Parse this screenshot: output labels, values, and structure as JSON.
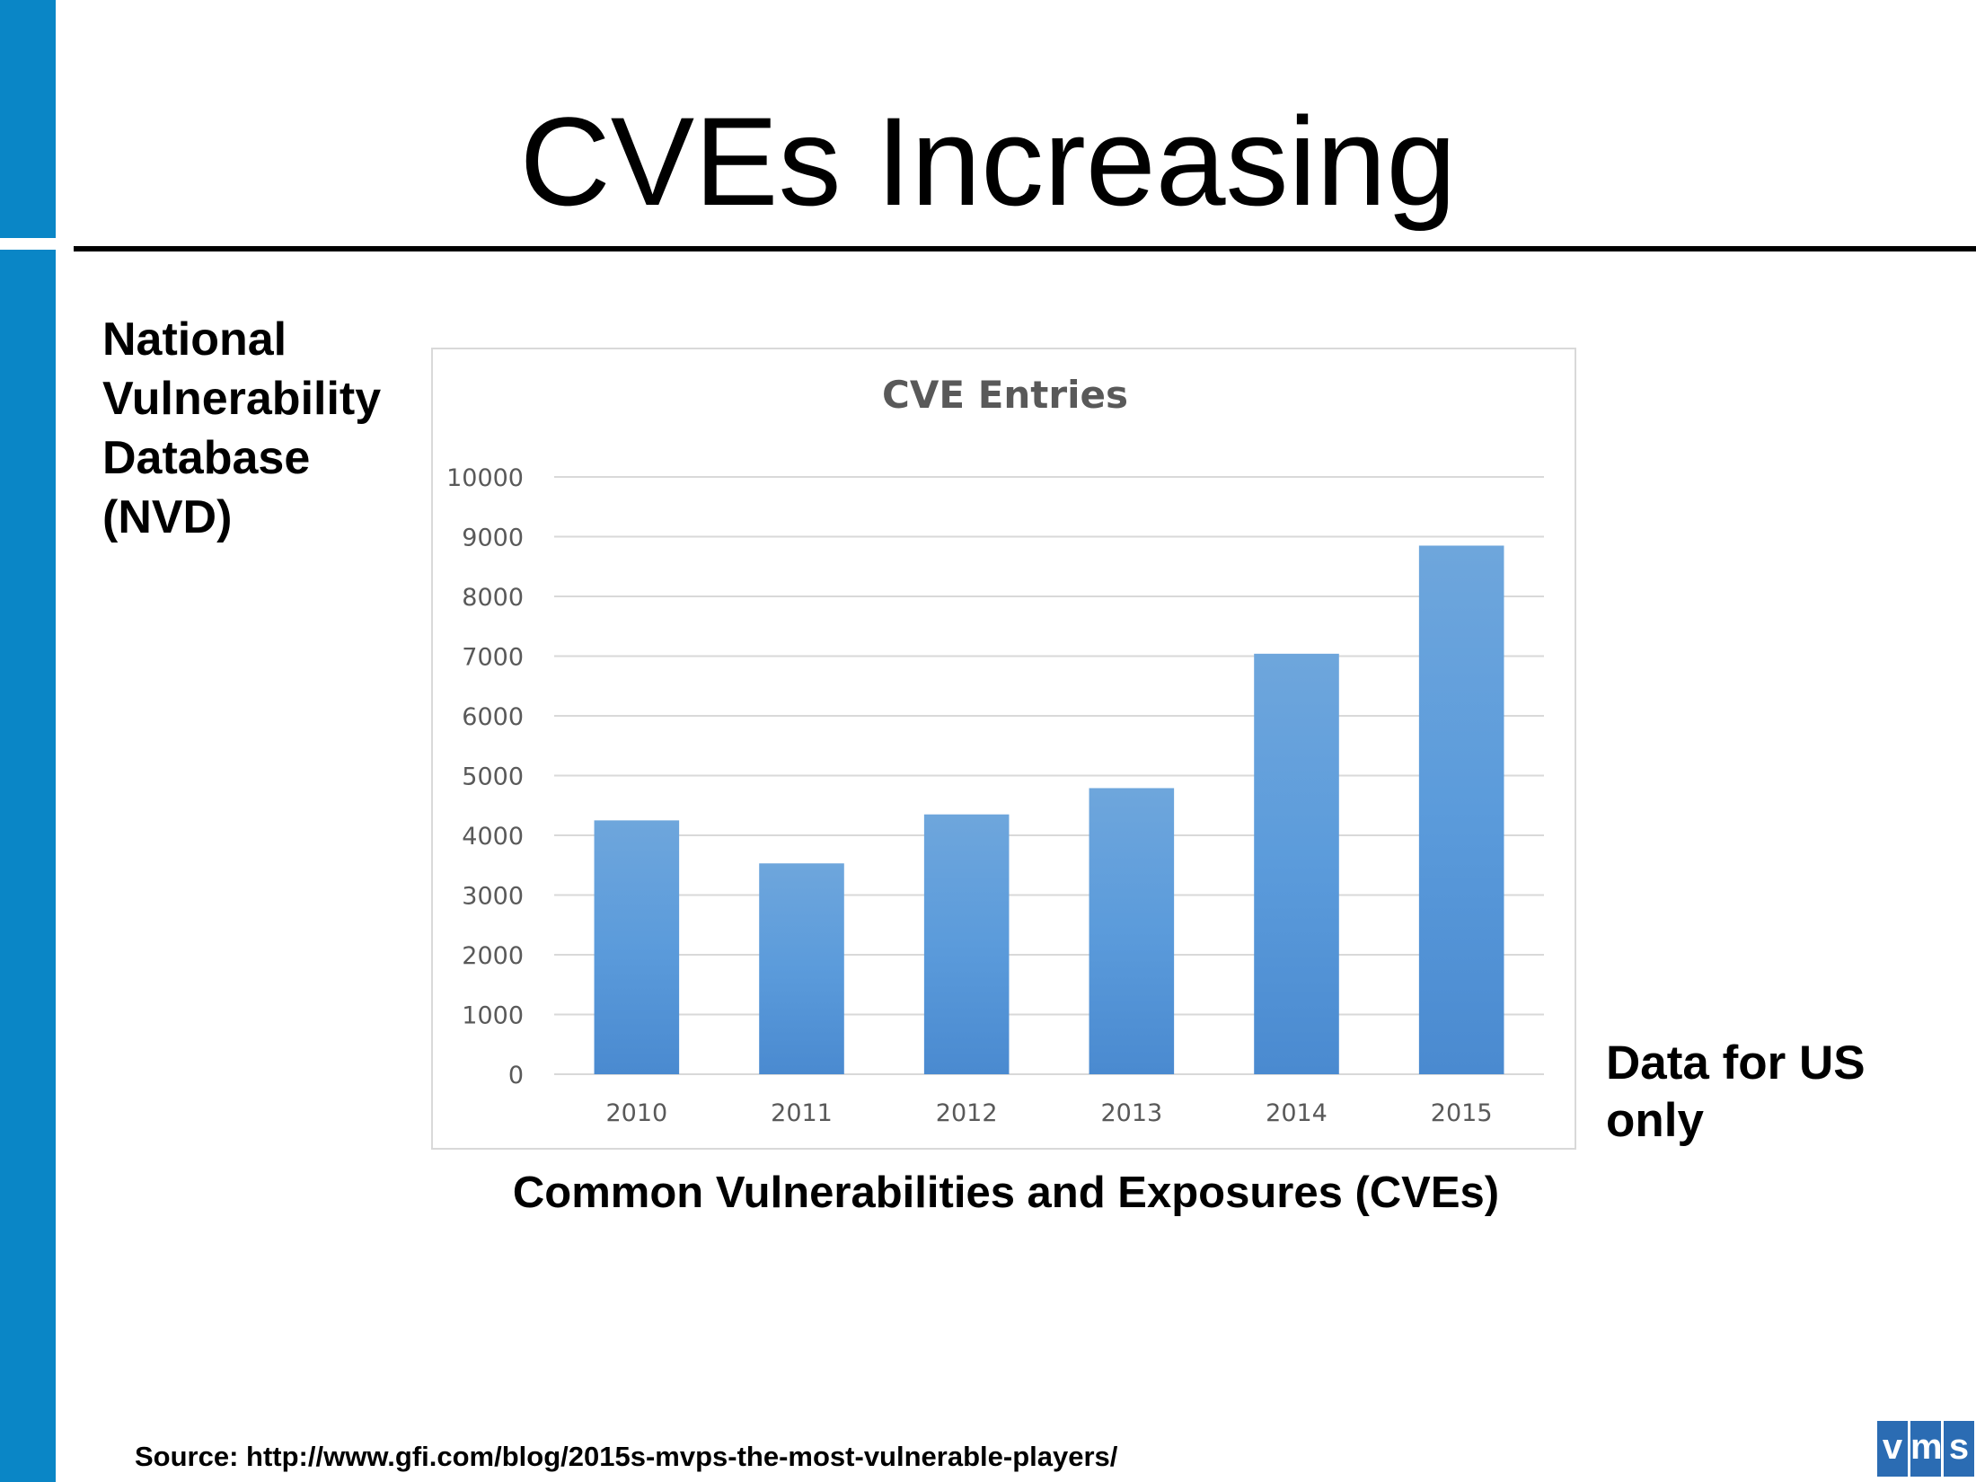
{
  "slide": {
    "title": "CVEs Increasing",
    "left_note": "National Vulnerability Database (NVD)",
    "right_note": "Data for US only",
    "caption": "Common Vulnerabilities and Exposures (CVEs)",
    "source": "Source: http://www.gfi.com/blog/2015s-mvps-the-most-vulnerable-players/",
    "logo_letters": [
      "v",
      "m",
      "s"
    ]
  },
  "colors": {
    "sidebar": "#0a86c6",
    "bar_top": "#6ea6dc",
    "bar_bottom": "#4a8ad0",
    "gridline": "#d9d9d9",
    "axis_text": "#595959",
    "logo": "#2b6cb3"
  },
  "chart_data": {
    "type": "bar",
    "title": "CVE Entries",
    "categories": [
      "2010",
      "2011",
      "2012",
      "2013",
      "2014",
      "2015"
    ],
    "values": [
      4250,
      3530,
      4350,
      4790,
      7040,
      8850
    ],
    "yticks": [
      0,
      1000,
      2000,
      3000,
      4000,
      5000,
      6000,
      7000,
      8000,
      9000,
      10000
    ],
    "ylim": [
      0,
      10000
    ],
    "xlabel": "",
    "ylabel": "",
    "grid": true,
    "legend": "none"
  }
}
